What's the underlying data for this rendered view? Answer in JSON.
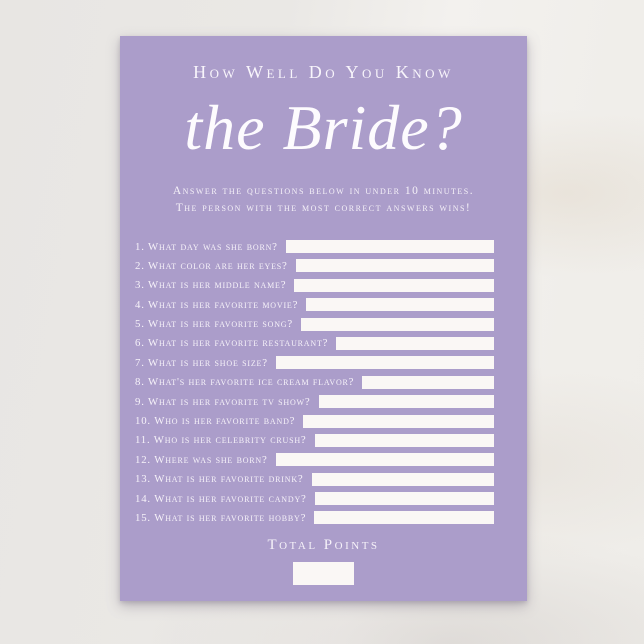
{
  "card": {
    "heading": "How Well Do You Know",
    "script_title": "the Bride?",
    "instructions": {
      "line1": "Answer the questions below in under 10 minutes.",
      "line2": "The person with the most correct answers wins!"
    },
    "questions": [
      "1. What day was she born?",
      "2. What color are her eyes?",
      "3. What is her middle name?",
      "4. What is her favorite movie?",
      "5. What is her favorite song?",
      "6. What is her favorite restaurant?",
      "7. What is her shoe size?",
      "8. What's her favorite ice cream flavor?",
      "9. What is her favorite tv show?",
      "10. Who is her favorite band?",
      "11. Who is her celebrity crush?",
      "12. Where was she born?",
      "13. What is her favorite drink?",
      "14. What is her favorite candy?",
      "15. What is her favorite hobby?"
    ],
    "answer_boxes_value": "",
    "total_label": "Total Points",
    "total_box_value": "",
    "colors": {
      "card_background": "#ab9dca",
      "card_text": "#f7f4fa",
      "answer_box": "#faf7f5",
      "page_background_left": "#e8e6e3",
      "page_background_right": "#f3f1ee"
    }
  }
}
